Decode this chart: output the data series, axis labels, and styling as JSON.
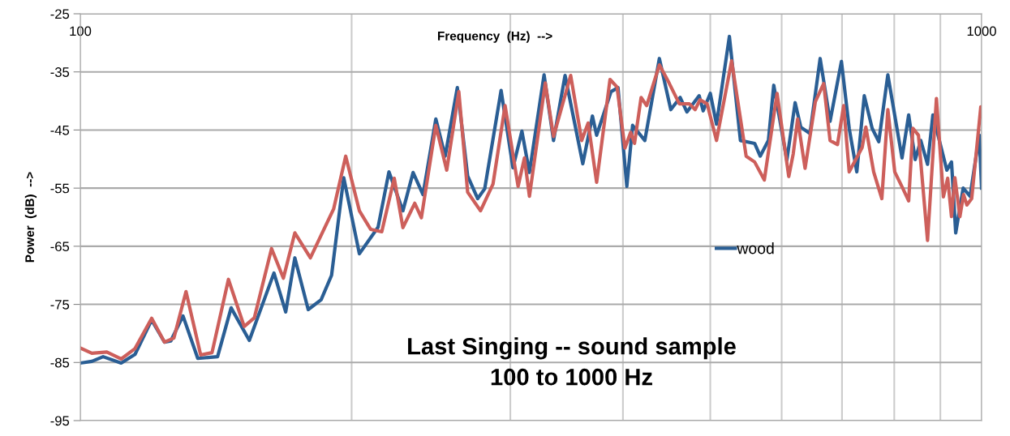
{
  "chart_data": {
    "type": "line",
    "title": "Last Singing -- sound sample\n100 to 1000 Hz",
    "xlabel": "Frequency  (Hz)  -->",
    "ylabel": "Power  (dB)  -->",
    "log": "x",
    "xlim": [
      100,
      1000
    ],
    "xticks": [
      100,
      {
        "value": 200,
        "label": null
      },
      {
        "value": 300,
        "label": null
      },
      {
        "value": 400,
        "label": null
      },
      {
        "value": 500,
        "label": null
      },
      {
        "value": 600,
        "label": null
      },
      {
        "value": 700,
        "label": null
      },
      {
        "value": 800,
        "label": null
      },
      {
        "value": 900,
        "label": null
      },
      1000
    ],
    "ylim": [
      -95,
      -25
    ],
    "yticks": [
      -95,
      -85,
      -75,
      -65,
      -55,
      -45,
      -35,
      -25
    ],
    "grid": true,
    "legend": "right",
    "marker": "none",
    "line_style": "solid",
    "series": [
      {
        "name": "wood",
        "color": "#2a5e94",
        "x": [
          100,
          103,
          106,
          111,
          115,
          120,
          124,
          126,
          130,
          135,
          142,
          147,
          154,
          164,
          169,
          173,
          179,
          185,
          190,
          196,
          204,
          214,
          220,
          228,
          234,
          240,
          248,
          254,
          262,
          269,
          276,
          281,
          293,
          302,
          309,
          315,
          327,
          335,
          345,
          361,
          370,
          374,
          388,
          395,
          404,
          410,
          423,
          439,
          452,
          463,
          471,
          486,
          491,
          500,
          508,
          525,
          540,
          560,
          568,
          580,
          588,
          608,
          621,
          630,
          645,
          662,
          679,
          699,
          713,
          727,
          741,
          756,
          769,
          787,
          816,
          830,
          844,
          856,
          871,
          883,
          915,
          926,
          936,
          954,
          971,
          994,
          1000
        ],
        "values": [
          -85.1,
          -84.8,
          -84.0,
          -85.1,
          -83.6,
          -77.7,
          -81.5,
          -81.3,
          -77.0,
          -84.3,
          -84.0,
          -75.6,
          -81.2,
          -69.6,
          -76.3,
          -67.0,
          -75.9,
          -74.2,
          -70.0,
          -53.2,
          -66.3,
          -61.7,
          -52.2,
          -58.9,
          -52.3,
          -56.1,
          -43.1,
          -49.5,
          -37.7,
          -52.9,
          -56.8,
          -55.1,
          -38.2,
          -51.5,
          -45.2,
          -52.3,
          -35.5,
          -46.8,
          -35.6,
          -50.8,
          -42.6,
          -45.9,
          -38.4,
          -37.7,
          -54.7,
          -44.2,
          -46.8,
          -32.7,
          -41.5,
          -39.4,
          -41.9,
          -39.1,
          -41.7,
          -38.7,
          -44.0,
          -28.9,
          -46.8,
          -47.3,
          -49.5,
          -46.8,
          -37.3,
          -50.2,
          -40.3,
          -44.5,
          -45.6,
          -32.7,
          -43.5,
          -33.2,
          -44.7,
          -52.2,
          -39.1,
          -44.7,
          -47.0,
          -35.5,
          -49.8,
          -42.4,
          -50.1,
          -46.8,
          -50.9,
          -42.4,
          -51.9,
          -50.5,
          -62.7,
          -55.0,
          -56.4,
          -45.9,
          -55.0
        ]
      },
      {
        "color": "#cd5f5b",
        "x": [
          100,
          103,
          107,
          111,
          115,
          120,
          124,
          127,
          131,
          136,
          140,
          146,
          152,
          156,
          163,
          168,
          173,
          180,
          191,
          197,
          204,
          210,
          216,
          223,
          228,
          235,
          239,
          248,
          255,
          263,
          269,
          278,
          287,
          296,
          306,
          311,
          315,
          328,
          335,
          350,
          360,
          366,
          374,
          387,
          394,
          402,
          408,
          412,
          419,
          425,
          439,
          450,
          462,
          474,
          481,
          487,
          496,
          508,
          528,
          548,
          560,
          574,
          593,
          611,
          618,
          625,
          637,
          654,
          668,
          679,
          692,
          703,
          713,
          737,
          744,
          759,
          775,
          787,
          801,
          818,
          830,
          839,
          851,
          871,
          891,
          907,
          917,
          926,
          934,
          946,
          955,
          963,
          975,
          998,
          1000
        ],
        "values": [
          -82.5,
          -83.4,
          -83.2,
          -84.4,
          -82.6,
          -77.4,
          -81.5,
          -80.8,
          -72.8,
          -83.7,
          -83.3,
          -70.7,
          -78.8,
          -77.3,
          -65.4,
          -70.5,
          -62.7,
          -67.0,
          -58.6,
          -49.5,
          -58.9,
          -62.1,
          -62.5,
          -53.3,
          -61.8,
          -57.6,
          -60.1,
          -44.2,
          -51.9,
          -38.4,
          -55.7,
          -58.9,
          -54.3,
          -40.8,
          -54.7,
          -49.8,
          -56.4,
          -36.9,
          -46.1,
          -35.6,
          -46.8,
          -43.8,
          -54.0,
          -36.3,
          -37.6,
          -48.1,
          -45.4,
          -47.3,
          -39.4,
          -40.8,
          -33.8,
          -36.9,
          -40.5,
          -40.5,
          -41.5,
          -39.8,
          -40.5,
          -46.8,
          -33.1,
          -49.5,
          -50.5,
          -53.6,
          -38.7,
          -53.0,
          -49.1,
          -43.1,
          -51.6,
          -40.1,
          -37.0,
          -46.8,
          -47.5,
          -40.8,
          -52.2,
          -48.0,
          -44.5,
          -52.2,
          -56.8,
          -41.5,
          -52.2,
          -55.1,
          -57.2,
          -44.7,
          -45.9,
          -64.0,
          -39.6,
          -56.5,
          -53.3,
          -59.9,
          -53.2,
          -59.9,
          -56.1,
          -57.9,
          -56.8,
          -41.0,
          -42.8
        ]
      }
    ]
  }
}
